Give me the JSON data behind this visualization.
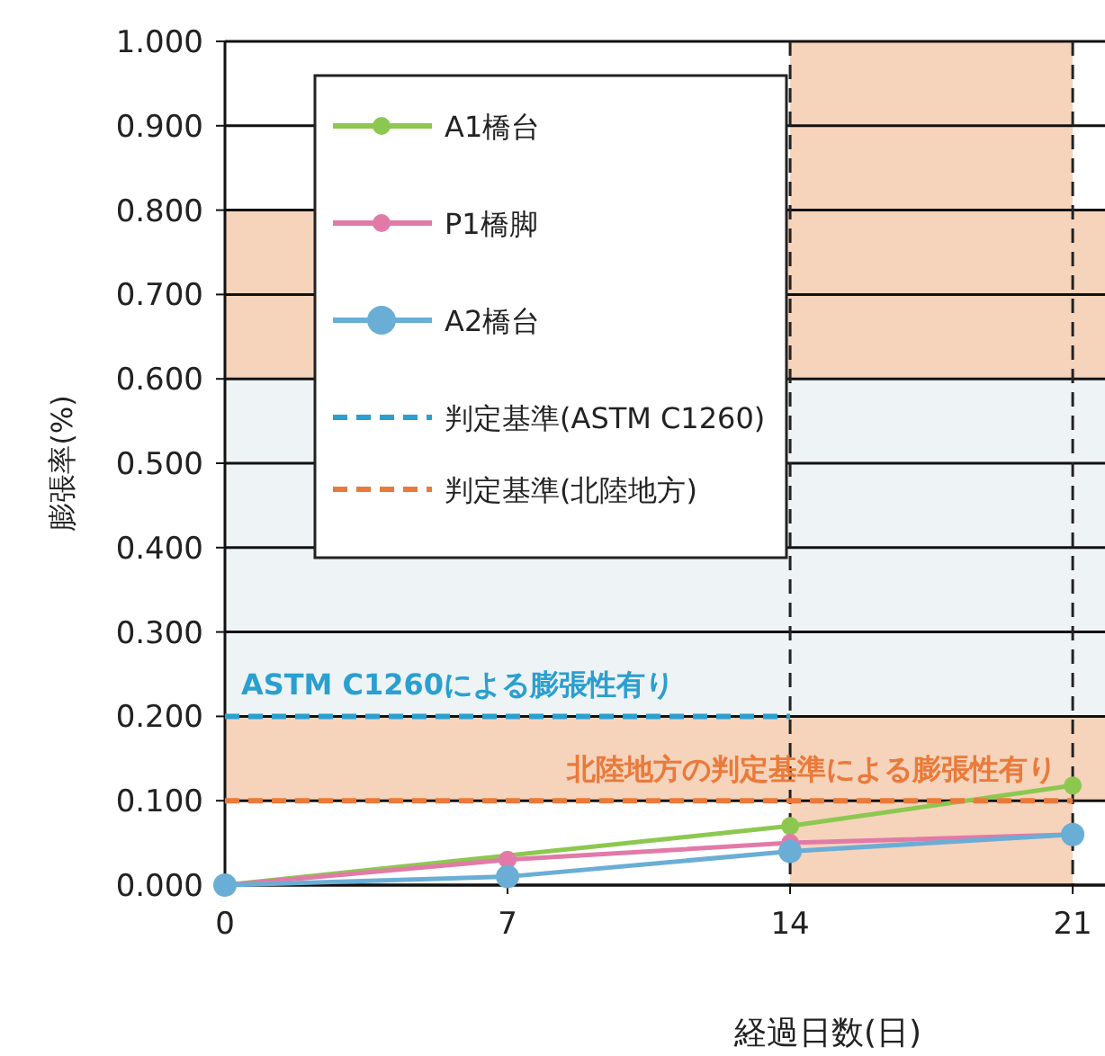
{
  "chart_data": {
    "type": "line",
    "xlabel": "経過日数(日)",
    "ylabel": "膨張率(%)",
    "x": [
      0,
      7,
      14,
      21
    ],
    "xlim": [
      0,
      21.8
    ],
    "xticks": [
      0,
      7,
      14,
      21
    ],
    "ylim": [
      0,
      1
    ],
    "yticks": [
      {
        "value": 0,
        "label": "0.000"
      },
      {
        "value": 0.1,
        "label": "0.100"
      },
      {
        "value": 0.2,
        "label": "0.200"
      },
      {
        "value": 0.3,
        "label": "0.300"
      },
      {
        "value": 0.4,
        "label": "0.400"
      },
      {
        "value": 0.5,
        "label": "0.500"
      },
      {
        "value": 0.6,
        "label": "0.600"
      },
      {
        "value": 0.7,
        "label": "0.700"
      },
      {
        "value": 0.8,
        "label": "0.800"
      },
      {
        "value": 0.9,
        "label": "0.900"
      },
      {
        "value": 1,
        "label": "1.000"
      }
    ],
    "grid": "y",
    "legend": "top left",
    "marker": "circle",
    "series": [
      {
        "name": "A1橋台",
        "color": "#8cc850",
        "values": [
          0,
          null,
          0.07,
          0.118
        ]
      },
      {
        "name": "P1橋脚",
        "color": "#e27aa8",
        "values": [
          0,
          0.03,
          0.05,
          0.06
        ]
      },
      {
        "name": "A2橋台",
        "color": "#6aaed6",
        "values": [
          0,
          0.01,
          0.04,
          0.06
        ]
      },
      {
        "name": "判定基準(ASTM C1260)",
        "color": "#2a9fd0",
        "x": [
          0,
          14
        ],
        "values": [
          0.2,
          0.2
        ],
        "line_style": "dashed",
        "marker": "none"
      },
      {
        "name": "判定基準(北陸地方)",
        "color": "#ea7a3a",
        "x": [
          0,
          21
        ],
        "values": [
          0.1,
          0.1
        ],
        "line_style": "dashed",
        "marker": "none"
      }
    ],
    "bands": [
      {
        "axis": "x",
        "from": 14,
        "to": 21,
        "color": "#f6d3bb"
      },
      {
        "axis": "y",
        "from": 0.1,
        "to": 0.2,
        "color": "#f6d3bb"
      },
      {
        "axis": "y",
        "from": 0.2,
        "to": 0.6,
        "color": "#eef3f5"
      },
      {
        "axis": "y",
        "from": 0.6,
        "to": 0.8,
        "color": "#f6d3bb"
      }
    ],
    "ref_lines": [
      {
        "axis": "x",
        "value": 14,
        "color": "#222222",
        "line_style": "dashed"
      },
      {
        "axis": "x",
        "value": 21,
        "color": "#222222",
        "line_style": "dashed"
      }
    ],
    "annotations": [
      {
        "text": "ASTM C1260による膨張性有り",
        "x": 0.4,
        "y": 0.2
      },
      {
        "text": "北陸地方の判定基準による膨張性有り",
        "x": 20.6,
        "y": 0.1
      }
    ]
  }
}
